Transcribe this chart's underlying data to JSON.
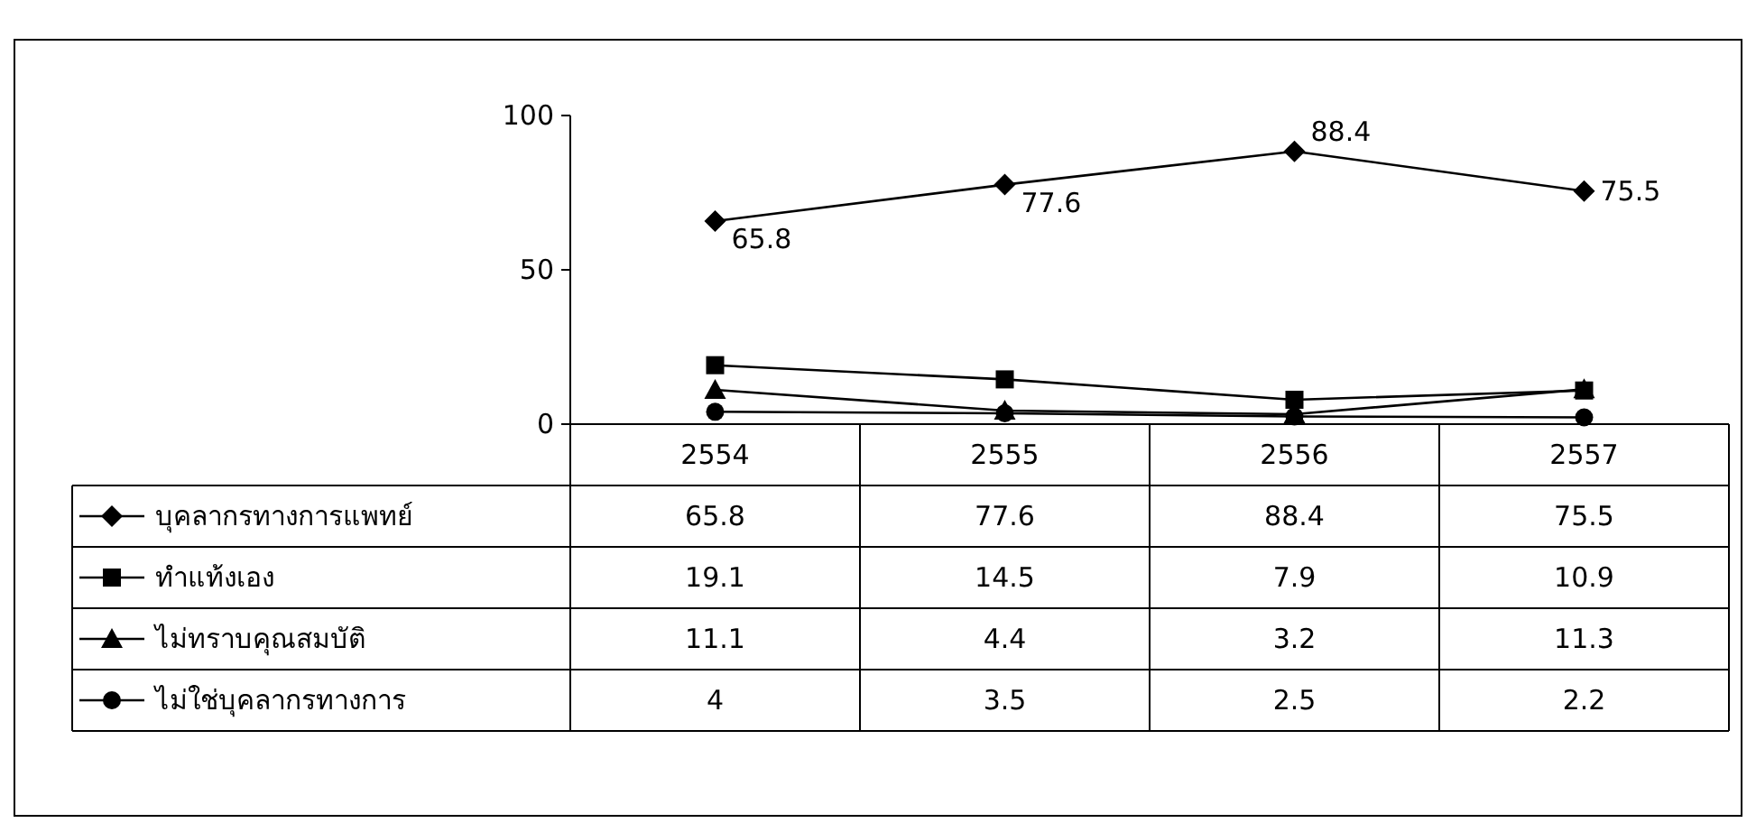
{
  "chart_data": {
    "type": "line",
    "categories": [
      "2554",
      "2555",
      "2556",
      "2557"
    ],
    "series": [
      {
        "name": "บุคลากรทางการแพทย์",
        "color": "#000000",
        "marker": "diamond",
        "values": [
          65.8,
          77.6,
          88.4,
          75.5
        ]
      },
      {
        "name": "ทำแท้งเอง",
        "color": "#000000",
        "marker": "square",
        "values": [
          19.1,
          14.5,
          7.9,
          10.9
        ]
      },
      {
        "name": "ไม่ทราบคุณสมบัติ",
        "color": "#000000",
        "marker": "triangle",
        "values": [
          11.1,
          4.4,
          3.2,
          11.3
        ]
      },
      {
        "name": "ไม่ใช่บุคลากรทางการ",
        "color": "#000000",
        "marker": "circle",
        "values": [
          4,
          3.5,
          2.5,
          2.2
        ]
      }
    ],
    "annotations": [
      {
        "text": "65.8",
        "x": "2554",
        "y": 65.8
      },
      {
        "text": "77.6",
        "x": "2555",
        "y": 77.6
      },
      {
        "text": "88.4",
        "x": "2556",
        "y": 88.4
      },
      {
        "text": "75.5",
        "x": "2557",
        "y": 75.5
      }
    ],
    "ylim": [
      0,
      100
    ],
    "yticks": [
      0,
      50,
      100
    ],
    "grid": false,
    "legend": "bottom",
    "data_labels": true,
    "line_style": "solid"
  }
}
